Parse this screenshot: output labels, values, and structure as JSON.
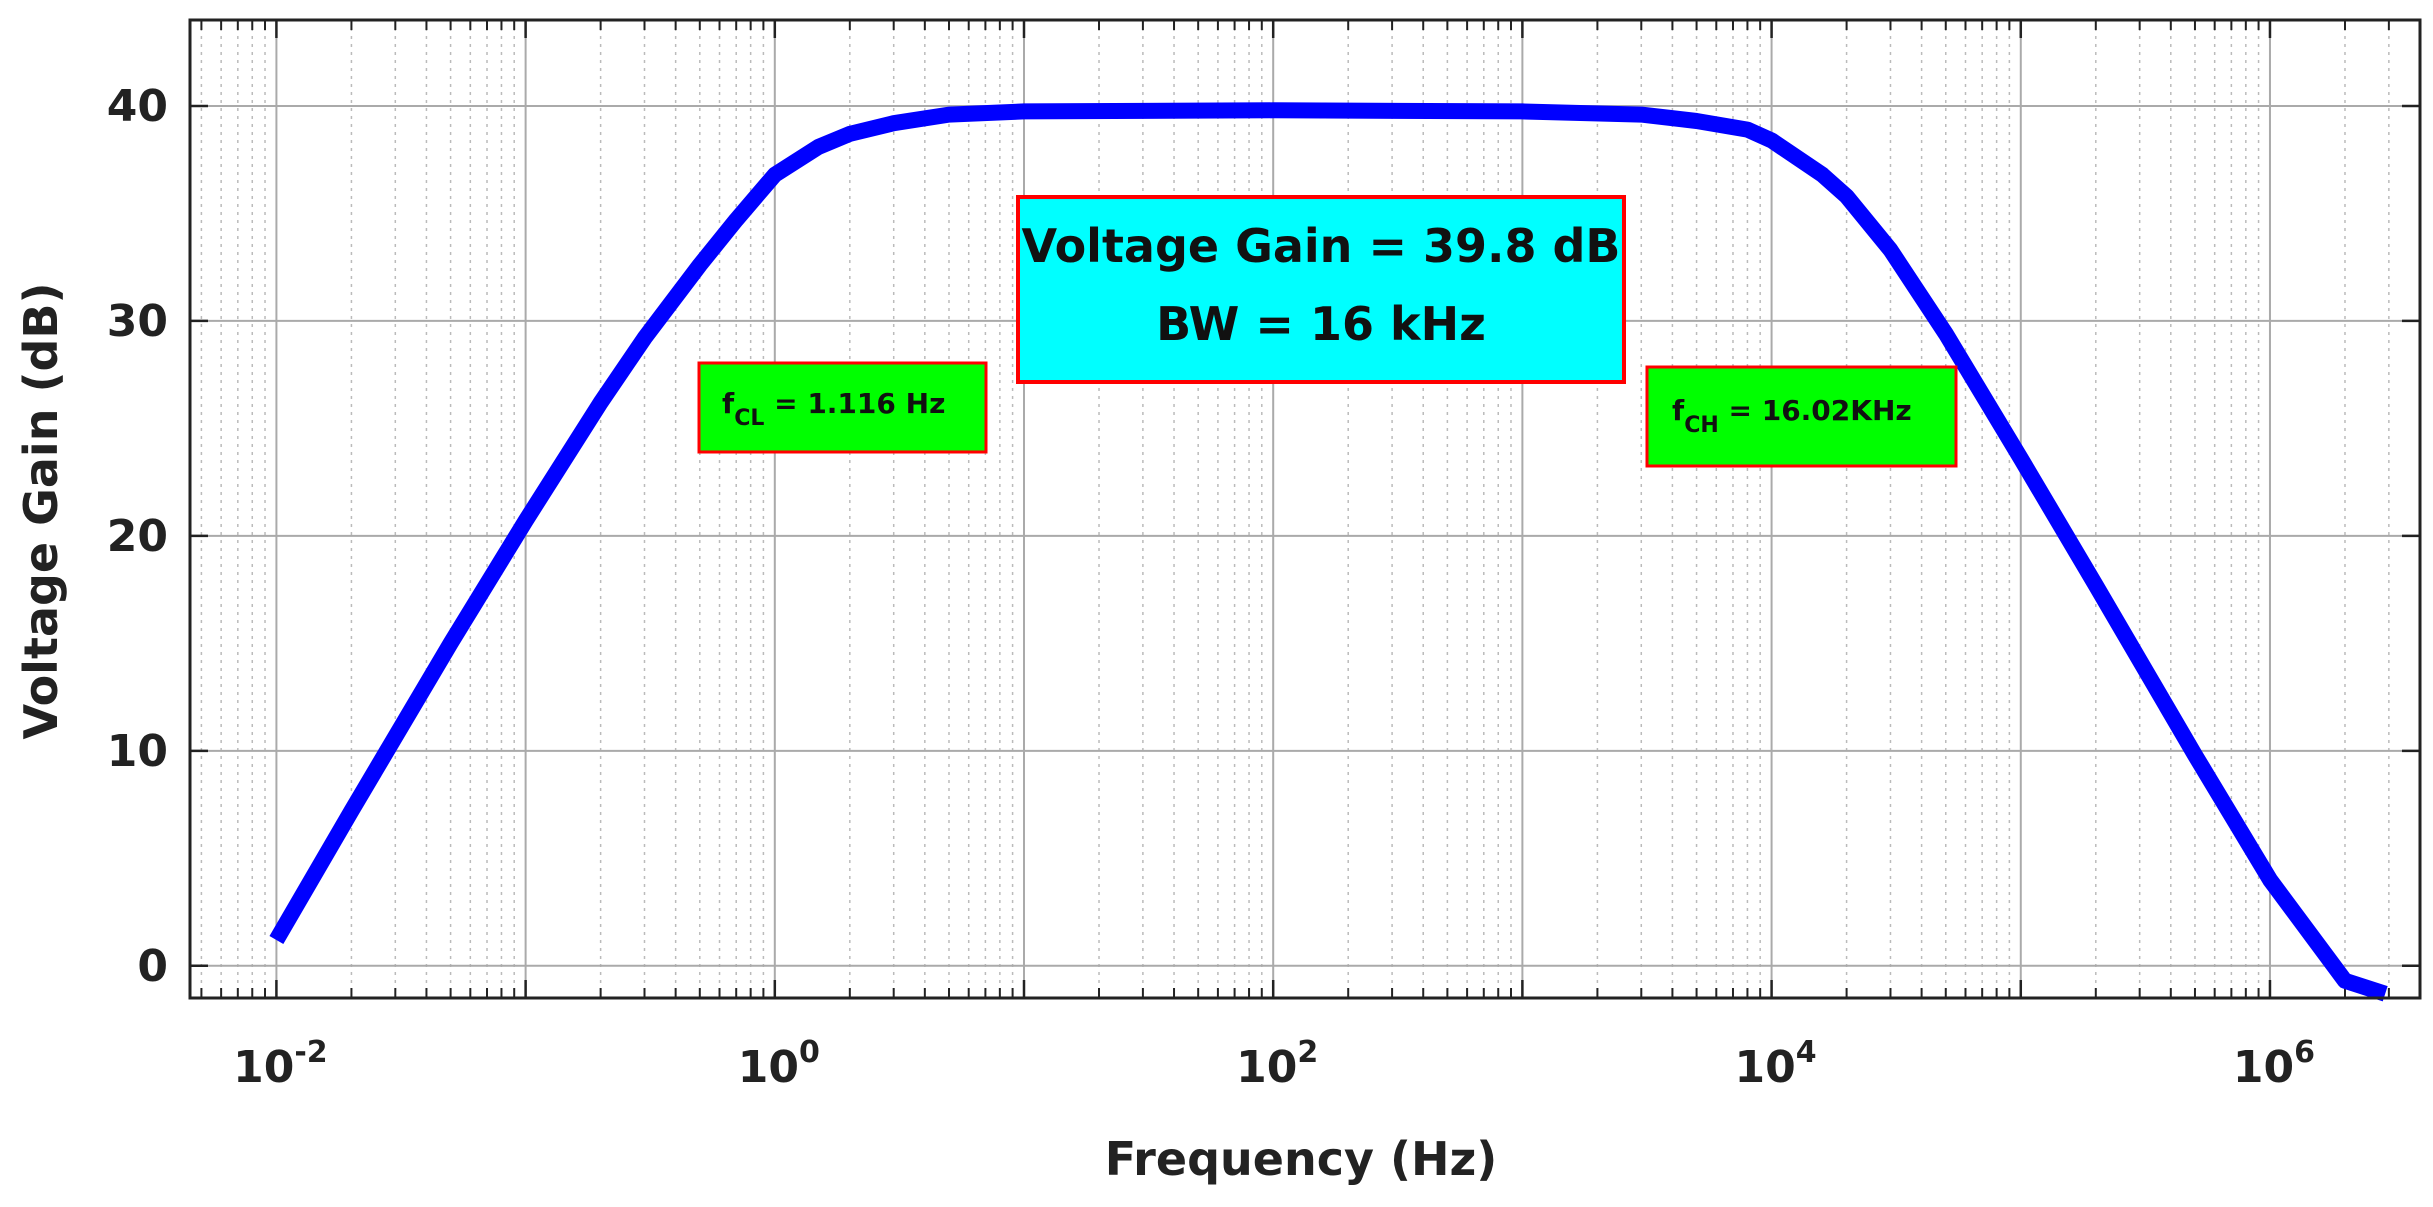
{
  "chart_data": {
    "type": "line",
    "title": "",
    "xlabel": "Frequency (Hz)",
    "ylabel": "Voltage Gain (dB)",
    "x_scale": "log",
    "xlim": [
      0.0045,
      4000000
    ],
    "ylim": [
      -1.5,
      44
    ],
    "grid": true,
    "x_ticks": [
      {
        "value": 0.01,
        "base": "10",
        "exp": "-2"
      },
      {
        "value": 1,
        "base": "10",
        "exp": "0"
      },
      {
        "value": 100,
        "base": "10",
        "exp": "2"
      },
      {
        "value": 10000,
        "base": "10",
        "exp": "4"
      },
      {
        "value": 1000000,
        "base": "10",
        "exp": "6"
      }
    ],
    "y_ticks": [
      0,
      10,
      20,
      30,
      40
    ],
    "series": [
      {
        "color": "#0000ff",
        "x": [
          0.01,
          0.02,
          0.05,
          0.1,
          0.2,
          0.3,
          0.5,
          0.7,
          1,
          1.5,
          2,
          3,
          5,
          10,
          100,
          1000,
          3000,
          5000,
          8000,
          10000,
          16000,
          20000,
          30000,
          50000,
          100000,
          200000,
          500000,
          1000000,
          2000000,
          2900000
        ],
        "y": [
          1.2,
          7.2,
          15.0,
          20.7,
          26.2,
          29.2,
          32.6,
          34.7,
          36.8,
          38.1,
          38.7,
          39.2,
          39.6,
          39.75,
          39.8,
          39.75,
          39.6,
          39.3,
          38.9,
          38.4,
          36.8,
          35.8,
          33.3,
          29.4,
          23.6,
          17.7,
          9.8,
          4.0,
          -0.7,
          -1.3
        ]
      }
    ],
    "annotations": {
      "main_box": {
        "line1": "Voltage Gain = 39.8 dB",
        "line2": "BW = 16 kHz",
        "fill": "#00ffff",
        "border": "#ff0000"
      },
      "fcl_box": {
        "symbol": "f",
        "subscript": "CL",
        "text": " = 1.116 Hz",
        "fill": "#00ff00",
        "border": "#ff0000"
      },
      "fch_box": {
        "symbol": "f",
        "subscript": "CH",
        "text": " = 16.02KHz",
        "fill": "#00ff00",
        "border": "#ff0000"
      }
    }
  }
}
